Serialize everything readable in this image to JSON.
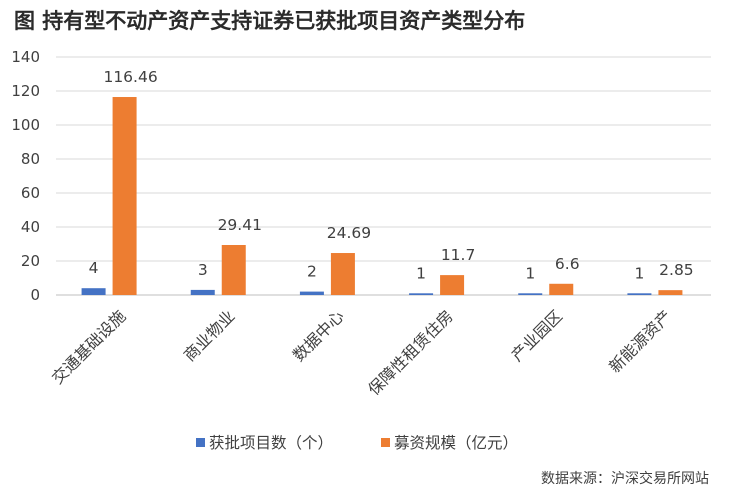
{
  "title": "图 持有型不动产资产支持证券已获批项目资产类型分布",
  "source": "数据来源：沪深交易所网站",
  "colors": {
    "series_0": "#4472c4",
    "series_1": "#ed7d31",
    "grid": "#d9d9d9",
    "axis": "#bfbfbf"
  },
  "chart_data": {
    "type": "bar",
    "title": "图 持有型不动产资产支持证券已获批项目资产类型分布",
    "xlabel": "",
    "ylabel": "",
    "categories": [
      "交通基础设施",
      "商业物业",
      "数据中心",
      "保障性租赁住房",
      "产业园区",
      "新能源资产"
    ],
    "series": [
      {
        "name": "获批项目数（个）",
        "values": [
          4,
          3,
          2,
          1,
          1,
          1
        ],
        "labels": [
          "4",
          "3",
          "2",
          "1",
          "1",
          "1"
        ]
      },
      {
        "name": "募资规模（亿元）",
        "values": [
          116.46,
          29.41,
          24.69,
          11.7,
          6.6,
          2.85
        ],
        "labels": [
          "116.46",
          "29.41",
          "24.69",
          "11.7",
          "6.6",
          "2.85"
        ]
      }
    ],
    "ylim": [
      0,
      140
    ],
    "yticks": [
      0,
      20,
      40,
      60,
      80,
      100,
      120,
      140
    ],
    "grid": true,
    "legend_position": "bottom"
  }
}
